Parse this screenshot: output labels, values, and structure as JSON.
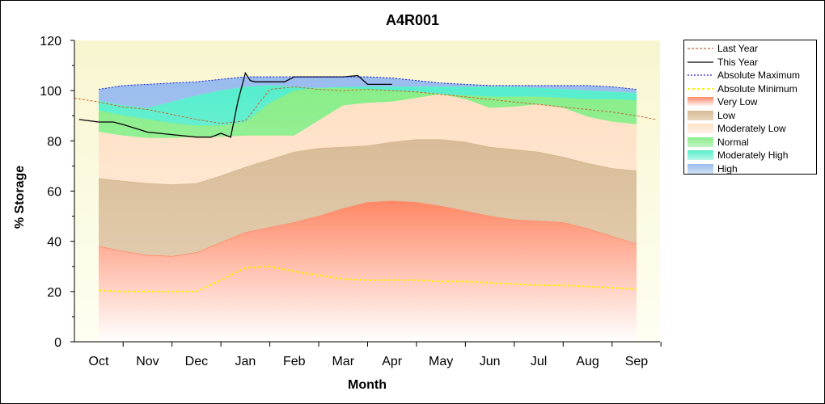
{
  "chart_data": {
    "type": "area",
    "title": "A4R001",
    "xlabel": "Month",
    "ylabel": "% Storage",
    "ylim": [
      0,
      120
    ],
    "yticks": [
      0,
      20,
      40,
      60,
      80,
      100,
      120
    ],
    "categories": [
      "Oct",
      "Nov",
      "Dec",
      "Jan",
      "Feb",
      "Mar",
      "Apr",
      "May",
      "Jun",
      "Jul",
      "Aug",
      "Sep"
    ],
    "grid": false,
    "legend_position": "right",
    "bands": [
      {
        "name": "Very Low",
        "color": "#ff8866",
        "x": [
          0.0,
          0.5,
          1.0,
          1.5,
          2.0,
          2.5,
          3.0,
          3.5,
          4.0,
          4.5,
          5.0,
          5.5,
          6.0,
          6.5,
          7.0,
          7.5,
          8.0,
          8.5,
          9.0,
          9.5,
          10.0,
          10.5,
          11.0
        ],
        "values": [
          38,
          36,
          34.5,
          34,
          35.5,
          39.5,
          43.5,
          45.5,
          47.5,
          50,
          53,
          55.5,
          56,
          55.5,
          54,
          52,
          50,
          48.5,
          48,
          47.5,
          45,
          42,
          39
        ]
      },
      {
        "name": "Low",
        "color": "#d4b48c",
        "x": [
          0.0,
          0.5,
          1.0,
          1.5,
          2.0,
          2.5,
          3.0,
          3.5,
          4.0,
          4.5,
          5.0,
          5.5,
          6.0,
          6.5,
          7.0,
          7.5,
          8.0,
          8.5,
          9.0,
          9.5,
          10.0,
          10.5,
          11.0
        ],
        "values": [
          65,
          64,
          63,
          62.5,
          63,
          66,
          69.5,
          72.5,
          75.5,
          77,
          77.5,
          78,
          79.5,
          80.5,
          80.5,
          79.5,
          77.5,
          76.5,
          75.5,
          73.5,
          71,
          69,
          68
        ]
      },
      {
        "name": "Moderately Low",
        "color": "#ffe3c8",
        "x": [
          0.0,
          0.5,
          1.0,
          1.5,
          2.0,
          2.5,
          3.0,
          3.5,
          4.0,
          4.5,
          5.0,
          5.5,
          6.0,
          6.5,
          7.0,
          7.5,
          8.0,
          8.5,
          9.0,
          9.5,
          10.0,
          10.5,
          11.0
        ],
        "values": [
          83.5,
          82,
          81,
          81,
          81.5,
          81.5,
          82,
          82,
          82,
          88,
          94,
          95,
          95.5,
          97,
          98.5,
          96.5,
          93,
          93.5,
          94.5,
          93,
          89.5,
          87.5,
          86.5
        ]
      },
      {
        "name": "Normal",
        "color": "#88ee88",
        "x": [
          0.0,
          0.5,
          1.0,
          1.5,
          2.0,
          2.5,
          3.0,
          3.5,
          4.0,
          4.5,
          5.0,
          5.5,
          6.0,
          6.5,
          7.0,
          7.5,
          8.0,
          8.5,
          9.0,
          9.5,
          10.0,
          10.5,
          11.0
        ],
        "values": [
          92,
          90,
          88.5,
          87,
          86,
          86,
          87.5,
          95,
          100,
          101,
          101,
          100.5,
          100,
          99.5,
          98.5,
          98,
          97.5,
          97.5,
          97.5,
          97,
          96.5,
          96.5,
          96
        ]
      },
      {
        "name": "Moderately High",
        "color": "#66eecc",
        "x": [
          0.0,
          0.5,
          1.0,
          1.5,
          2.0,
          2.5,
          3.0,
          3.5,
          4.0,
          4.5,
          5.0,
          5.5,
          6.0,
          6.5,
          7.0,
          7.5,
          8.0,
          8.5,
          9.0,
          9.5,
          10.0,
          10.5,
          11.0
        ],
        "values": [
          96,
          94,
          93,
          95.5,
          98,
          100,
          101.5,
          102,
          101.5,
          101,
          101.5,
          101.5,
          101.5,
          101.5,
          101.5,
          101.5,
          101.5,
          101.5,
          101,
          100.5,
          100,
          99.5,
          99
        ]
      },
      {
        "name": "High",
        "color": "#aaccee",
        "x": [
          0.0,
          0.5,
          1.0,
          1.5,
          2.0,
          2.5,
          3.0,
          3.5,
          4.0,
          4.5,
          5.0,
          5.5,
          6.0,
          6.5,
          7.0,
          7.5,
          8.0,
          8.5,
          9.0,
          9.5,
          10.0,
          10.5,
          11.0
        ],
        "values": [
          100.5,
          102,
          102.5,
          103,
          103.5,
          104.5,
          105.5,
          105.5,
          105.5,
          105.5,
          105.5,
          105.5,
          105,
          104,
          103,
          102.5,
          102,
          102,
          102,
          102,
          102,
          101.5,
          100.5
        ]
      }
    ],
    "series": [
      {
        "name": "Last Year",
        "color": "#cc6633",
        "dash": "3,2",
        "x": [
          -0.5,
          0.0,
          0.5,
          1.0,
          1.5,
          2.0,
          2.5,
          2.8,
          3.0,
          3.2,
          3.5,
          4.0,
          4.5,
          5.0,
          5.5,
          6.0,
          6.5,
          7.0,
          7.5,
          8.0,
          8.5,
          9.0,
          9.5,
          10.0,
          10.5,
          11.0,
          11.4
        ],
        "values": [
          97,
          95.5,
          93.5,
          92.5,
          90.5,
          88.5,
          87,
          87.5,
          88,
          93,
          100.5,
          101.5,
          100.5,
          100,
          100.5,
          100,
          99.5,
          98.5,
          97.5,
          96.5,
          95.5,
          94.5,
          93.5,
          92.5,
          91.5,
          90,
          88.5
        ]
      },
      {
        "name": "This Year",
        "color": "#000000",
        "dash": "",
        "x": [
          -0.4,
          0.0,
          0.3,
          0.5,
          1.0,
          1.5,
          2.0,
          2.3,
          2.5,
          2.7,
          2.85,
          3.0,
          3.1,
          3.2,
          3.5,
          3.8,
          4.0,
          4.5,
          5.0,
          5.3,
          5.5,
          6.0
        ],
        "values": [
          88.5,
          87.5,
          87.5,
          86.5,
          83.5,
          82.5,
          81.5,
          81.5,
          83,
          81.5,
          96,
          107,
          104,
          103.5,
          103.5,
          103.5,
          105.5,
          105.5,
          105.5,
          106,
          102.5,
          102.5
        ]
      },
      {
        "name": "Absolute Maximum",
        "color": "#2222cc",
        "dash": "2,2",
        "x": [
          0.0,
          0.5,
          1.0,
          1.5,
          2.0,
          2.5,
          3.0,
          3.5,
          4.0,
          4.5,
          5.0,
          5.5,
          6.0,
          6.5,
          7.0,
          7.5,
          8.0,
          8.5,
          9.0,
          9.5,
          10.0,
          10.5,
          11.0
        ],
        "values": [
          100.5,
          102,
          102.5,
          103,
          103.5,
          104.5,
          105.5,
          105.5,
          105.5,
          105.5,
          105.5,
          105.5,
          105,
          104,
          103,
          102.5,
          102,
          102,
          102,
          102,
          102,
          101.5,
          100.5
        ]
      },
      {
        "name": "Absolute Minimum",
        "color": "#ffee00",
        "dash": "3,3",
        "x": [
          0.0,
          0.5,
          1.0,
          1.5,
          2.0,
          2.5,
          3.0,
          3.5,
          4.0,
          4.5,
          5.0,
          5.5,
          6.0,
          6.5,
          7.0,
          7.5,
          8.0,
          8.5,
          9.0,
          9.5,
          10.0,
          10.5,
          11.0
        ],
        "values": [
          20.5,
          20,
          20,
          20,
          20,
          24.5,
          29.5,
          30,
          28,
          26.5,
          25,
          24.5,
          24.5,
          24.5,
          24,
          24,
          23.5,
          23,
          22.5,
          22.5,
          22,
          21.5,
          21
        ]
      }
    ],
    "legend": [
      {
        "label": "Last Year",
        "kind": "line",
        "color": "#cc6633",
        "dash": "3,2"
      },
      {
        "label": "This Year",
        "kind": "line",
        "color": "#000000",
        "dash": ""
      },
      {
        "label": "Absolute Maximum",
        "kind": "line",
        "color": "#2222cc",
        "dash": "2,2"
      },
      {
        "label": "Absolute Minimum",
        "kind": "line",
        "color": "#ffee00",
        "dash": "3,3"
      },
      {
        "label": "Very Low",
        "kind": "band",
        "color": "#ff8866"
      },
      {
        "label": "Low",
        "kind": "band",
        "color": "#d4b48c"
      },
      {
        "label": "Moderately Low",
        "kind": "band",
        "color": "#ffe3c8"
      },
      {
        "label": "Normal",
        "kind": "band",
        "color": "#88ee88"
      },
      {
        "label": "Moderately High",
        "kind": "band",
        "color": "#66eecc"
      },
      {
        "label": "High",
        "kind": "band",
        "color": "#aaccee"
      }
    ],
    "plot_background": "#fffde4"
  }
}
